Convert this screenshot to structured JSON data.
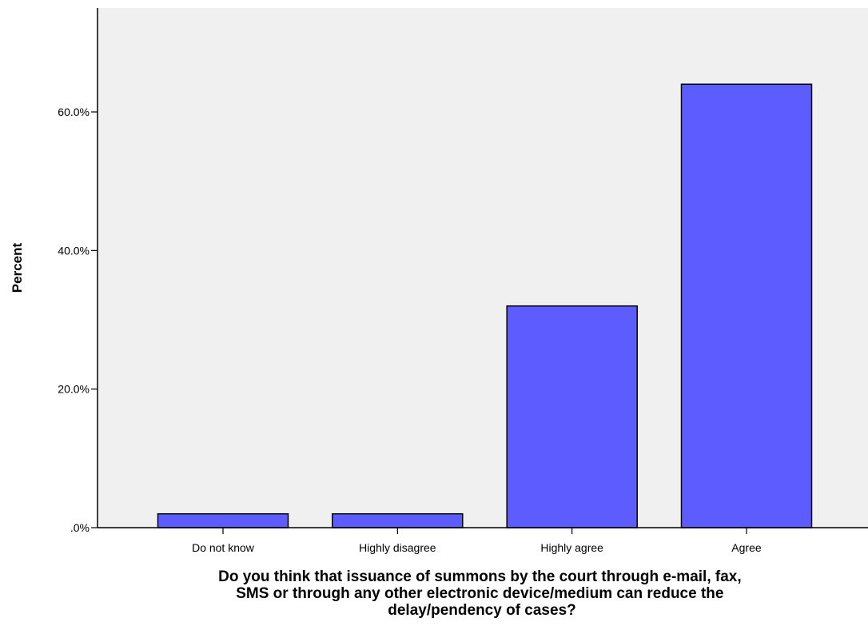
{
  "chart_data": {
    "type": "bar",
    "categories": [
      "Do not know",
      "Highly disagree",
      "Highly agree",
      "Agree"
    ],
    "values": [
      2.0,
      2.0,
      32.0,
      64.0
    ],
    "ylabel": "Percent",
    "xlabel_lines": [
      "Do you think that issuance of summons by the court through e-mail, fax,",
      "SMS or through any other electronic device/medium can reduce the",
      "delay/pendency of cases?"
    ],
    "ylim": [
      0,
      75
    ],
    "y_ticks": [
      0,
      20,
      40,
      60
    ],
    "y_tick_labels": [
      ".0%",
      "20.0%",
      "40.0%",
      "60.0%"
    ],
    "grid": false,
    "legend": "none",
    "colors": {
      "bar_fill": "#5c5cff",
      "bar_stroke": "#000000",
      "plot_background": "#f0f0f0"
    }
  }
}
